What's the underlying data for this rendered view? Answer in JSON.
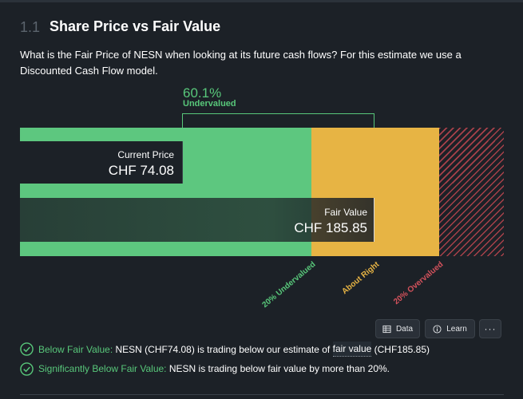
{
  "section": {
    "number": "1.1",
    "title": "Share Price vs Fair Value",
    "description": "What is the Fair Price of NESN when looking at its future cash flows? For this estimate we use a Discounted Cash Flow model."
  },
  "valuation": {
    "discount_percent": "60.1%",
    "discount_label": "Undervalued",
    "current_price_label": "Current Price",
    "current_price_value": "CHF 74.08",
    "fair_value_label": "Fair Value",
    "fair_value_value": "CHF 185.85",
    "zones": {
      "undervalued": "20% Undervalued",
      "about_right": "About Right",
      "overvalued": "20% Overvalued"
    },
    "colors": {
      "undervalued": "#5dc77f",
      "about_right": "#e7b444",
      "overvalued": "#a8414a"
    }
  },
  "actions": {
    "data_label": "Data",
    "learn_label": "Learn",
    "more_label": "···"
  },
  "checks": [
    {
      "title": "Below Fair Value:",
      "text_before": " NESN (CHF74.08) is trading below our estimate of ",
      "link": "fair value",
      "text_after": " (CHF185.85)"
    },
    {
      "title": "Significantly Below Fair Value:",
      "text": " NESN is trading below fair value by more than 20%."
    }
  ]
}
